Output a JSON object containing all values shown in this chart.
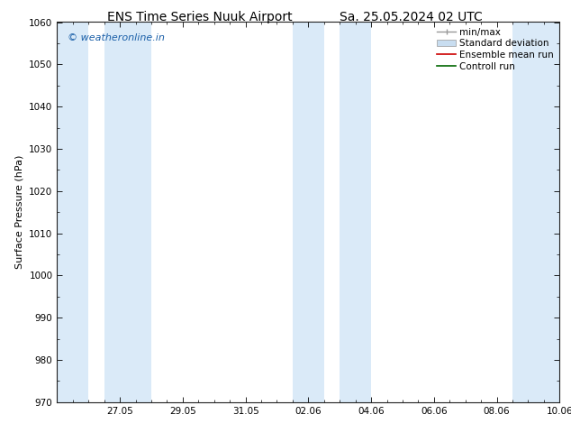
{
  "title_left": "ENS Time Series Nuuk Airport",
  "title_right": "Sa. 25.05.2024 02 UTC",
  "ylabel": "Surface Pressure (hPa)",
  "ylim": [
    970,
    1060
  ],
  "yticks": [
    970,
    980,
    990,
    1000,
    1010,
    1020,
    1030,
    1040,
    1050,
    1060
  ],
  "xlim_start": 0.0,
  "xlim_end": 16.0,
  "xtick_positions": [
    2,
    4,
    6,
    8,
    10,
    12,
    14,
    16
  ],
  "xtick_labels": [
    "27.05",
    "29.05",
    "31.05",
    "02.06",
    "04.06",
    "06.06",
    "08.06",
    "10.06"
  ],
  "bg_color": "#ffffff",
  "plot_bg_color": "#ffffff",
  "blue_bands": [
    {
      "x_start": 0.0,
      "x_end": 1.0
    },
    {
      "x_start": 1.5,
      "x_end": 3.0
    },
    {
      "x_start": 7.5,
      "x_end": 8.5
    },
    {
      "x_start": 9.0,
      "x_end": 10.0
    },
    {
      "x_start": 14.5,
      "x_end": 16.0
    }
  ],
  "shade_color": "#daeaf8",
  "watermark_text": "© weatheronline.in",
  "watermark_color": "#1a5fa8",
  "title_fontsize": 10,
  "label_fontsize": 8,
  "tick_fontsize": 7.5,
  "legend_fontsize": 7.5
}
